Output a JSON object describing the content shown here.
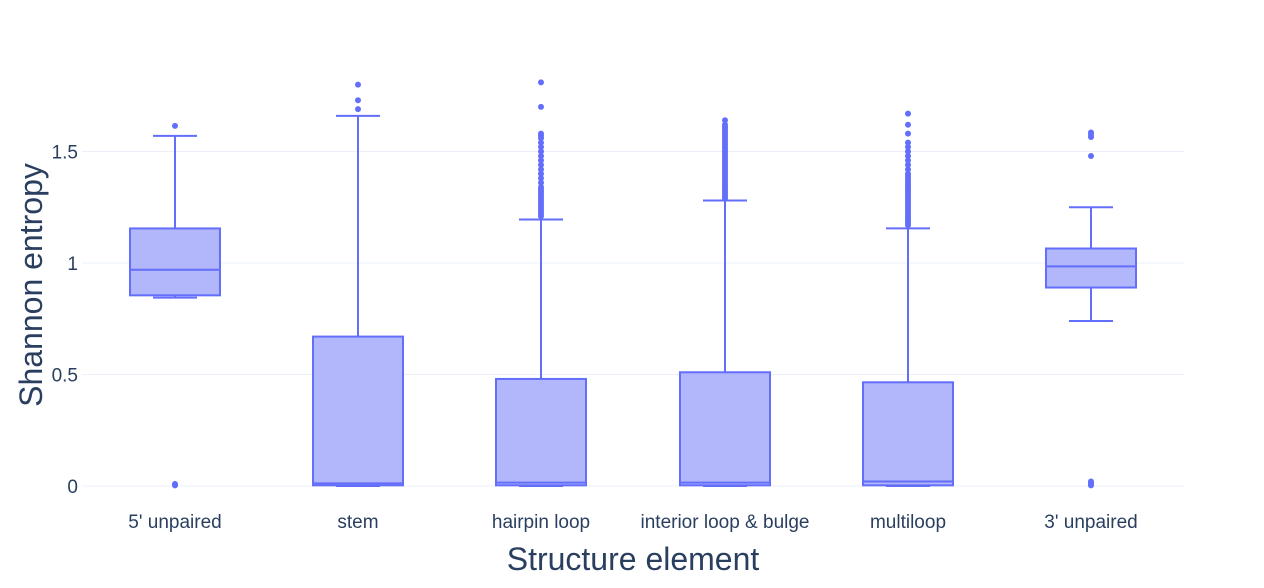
{
  "chart_data": {
    "type": "box",
    "xlabel": "Structure element",
    "ylabel": "Shannon entropy",
    "ylim": [
      -0.02,
      1.87
    ],
    "yticks": [
      0,
      0.5,
      1,
      1.5
    ],
    "ytick_labels": [
      "0",
      "0.5",
      "1",
      "1.5"
    ],
    "grid": true,
    "colors": {
      "box_line": "#636efa",
      "box_fill": "#b2b6fb",
      "grid": "#ebf0f8",
      "text": "#2a3f5f"
    },
    "categories": [
      "5' unpaired",
      "stem",
      "hairpin loop",
      "interior loop & bulge",
      "multiloop",
      "3' unpaired"
    ],
    "boxes": [
      {
        "category": "5' unpaired",
        "lower_fence": 0.845,
        "q1": 0.855,
        "median": 0.97,
        "q3": 1.155,
        "upper_fence": 1.57,
        "outliers": [
          1.615,
          0.003,
          0.006,
          0.009
        ]
      },
      {
        "category": "stem",
        "lower_fence": 0.0,
        "q1": 0.003,
        "median": 0.012,
        "q3": 0.67,
        "upper_fence": 1.66,
        "outliers": [
          1.69,
          1.73,
          1.8
        ]
      },
      {
        "category": "hairpin loop",
        "lower_fence": 0.0,
        "q1": 0.003,
        "median": 0.015,
        "q3": 0.48,
        "upper_fence": 1.195,
        "outliers": [
          1.21,
          1.22,
          1.23,
          1.24,
          1.25,
          1.26,
          1.27,
          1.28,
          1.29,
          1.3,
          1.31,
          1.32,
          1.33,
          1.34,
          1.36,
          1.38,
          1.4,
          1.42,
          1.44,
          1.46,
          1.48,
          1.5,
          1.52,
          1.54,
          1.56,
          1.57,
          1.58,
          1.7,
          1.81
        ]
      },
      {
        "category": "interior loop & bulge",
        "lower_fence": 0.0,
        "q1": 0.003,
        "median": 0.015,
        "q3": 0.51,
        "upper_fence": 1.28,
        "outliers": [
          1.29,
          1.3,
          1.31,
          1.32,
          1.33,
          1.34,
          1.35,
          1.36,
          1.37,
          1.38,
          1.39,
          1.4,
          1.41,
          1.42,
          1.43,
          1.44,
          1.45,
          1.46,
          1.47,
          1.48,
          1.49,
          1.5,
          1.51,
          1.52,
          1.53,
          1.54,
          1.55,
          1.56,
          1.57,
          1.58,
          1.59,
          1.6,
          1.61,
          1.62,
          1.64
        ]
      },
      {
        "category": "multiloop",
        "lower_fence": 0.0,
        "q1": 0.003,
        "median": 0.02,
        "q3": 0.465,
        "upper_fence": 1.155,
        "outliers": [
          1.17,
          1.18,
          1.19,
          1.2,
          1.21,
          1.22,
          1.23,
          1.24,
          1.25,
          1.26,
          1.27,
          1.28,
          1.29,
          1.3,
          1.31,
          1.32,
          1.33,
          1.34,
          1.35,
          1.36,
          1.37,
          1.38,
          1.39,
          1.4,
          1.42,
          1.44,
          1.46,
          1.48,
          1.5,
          1.52,
          1.54,
          1.58,
          1.62,
          1.67
        ]
      },
      {
        "category": "3' unpaired",
        "lower_fence": 0.74,
        "q1": 0.89,
        "median": 0.985,
        "q3": 1.065,
        "upper_fence": 1.25,
        "outliers": [
          1.48,
          1.565,
          1.575,
          1.585,
          0.003,
          0.008,
          0.013,
          0.02
        ]
      }
    ]
  }
}
